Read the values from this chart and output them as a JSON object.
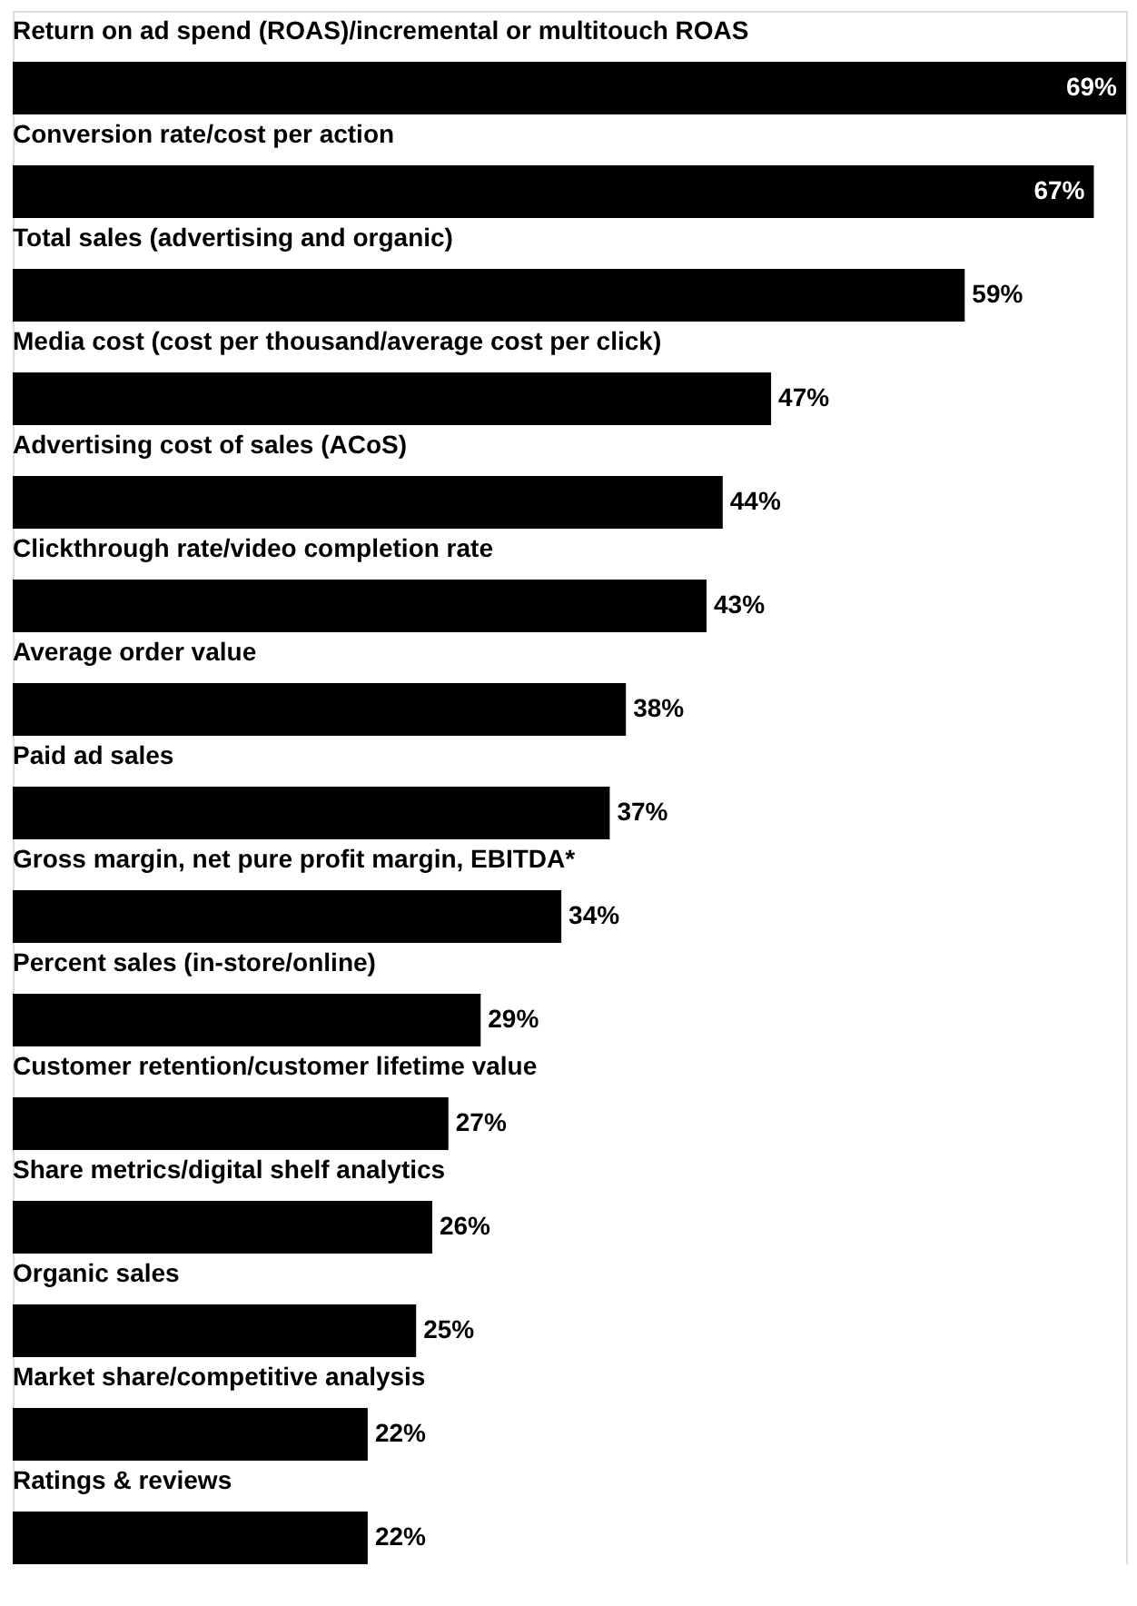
{
  "chart_data": {
    "type": "bar",
    "orientation": "horizontal",
    "categories": [
      "Return on ad spend (ROAS)/incremental or multitouch ROAS",
      "Conversion rate/cost per action",
      "Total sales (advertising and organic)",
      "Media cost (cost per thousand/average cost per click)",
      "Advertising cost of sales (ACoS)",
      "Clickthrough rate/video completion rate",
      "Average order value",
      "Paid ad sales",
      "Gross margin, net pure profit margin, EBITDA*",
      "Percent sales (in-store/online)",
      "Customer retention/customer lifetime value",
      "Share metrics/digital shelf analytics",
      "Organic sales",
      "Market share/competitive analysis",
      "Ratings & reviews"
    ],
    "values": [
      69,
      67,
      59,
      47,
      44,
      43,
      38,
      37,
      34,
      29,
      27,
      26,
      25,
      22,
      22
    ],
    "value_labels": [
      "69%",
      "67%",
      "59%",
      "47%",
      "44%",
      "43%",
      "38%",
      "37%",
      "34%",
      "29%",
      "27%",
      "26%",
      "25%",
      "22%",
      "22%"
    ],
    "color": "#000000"
  }
}
